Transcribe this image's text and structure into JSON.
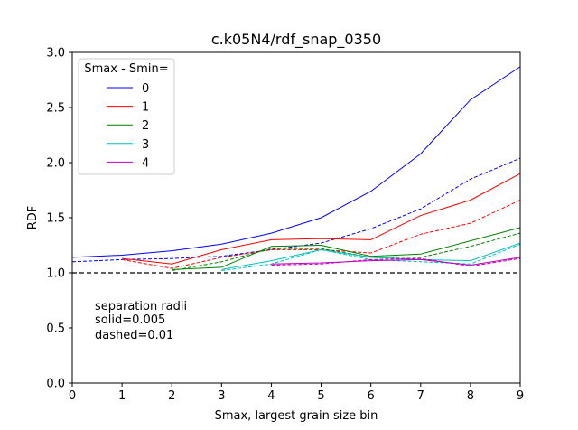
{
  "chart_data": {
    "type": "line",
    "title": "c.k05N4/rdf_snap_0350",
    "xlabel": "Smax, largest grain size bin",
    "ylabel": "RDF",
    "xlim": [
      0,
      9
    ],
    "ylim": [
      0.0,
      3.0
    ],
    "xticks": [
      "0",
      "1",
      "2",
      "3",
      "4",
      "5",
      "6",
      "7",
      "8",
      "9"
    ],
    "yticks": [
      "0.0",
      "0.5",
      "1.0",
      "1.5",
      "2.0",
      "2.5",
      "3.0"
    ],
    "grid": false,
    "legend": {
      "title": "Smax - Smin=",
      "placement": "upper-left",
      "entries": [
        {
          "label": "0",
          "color": "#0000ff"
        },
        {
          "label": "1",
          "color": "#ff0000"
        },
        {
          "label": "2",
          "color": "#008000"
        },
        {
          "label": "3",
          "color": "#00bfbf"
        },
        {
          "label": "4",
          "color": "#bf00bf"
        }
      ]
    },
    "reference_line": {
      "y": 1.0,
      "color": "#000000",
      "style": "dashed"
    },
    "annotation": [
      "separation radii",
      "solid=0.005",
      "dashed=0.01"
    ],
    "series": [
      {
        "name": "0",
        "style": "solid",
        "color": "#0000ff",
        "x": [
          0,
          1,
          2,
          3,
          4,
          5,
          6,
          7,
          8,
          9
        ],
        "y": [
          1.14,
          1.16,
          1.2,
          1.26,
          1.36,
          1.5,
          1.74,
          2.08,
          2.57,
          2.87
        ]
      },
      {
        "name": "0",
        "style": "dashed",
        "color": "#0000ff",
        "x": [
          0,
          1,
          2,
          3,
          4,
          5,
          6,
          7,
          8,
          9
        ],
        "y": [
          1.1,
          1.12,
          1.13,
          1.15,
          1.21,
          1.27,
          1.4,
          1.58,
          1.85,
          2.04
        ]
      },
      {
        "name": "1",
        "style": "solid",
        "color": "#ff0000",
        "x": [
          1,
          2,
          3,
          4,
          5,
          6,
          7,
          8,
          9
        ],
        "y": [
          1.13,
          1.08,
          1.21,
          1.3,
          1.31,
          1.3,
          1.52,
          1.66,
          1.9
        ]
      },
      {
        "name": "1",
        "style": "dashed",
        "color": "#ff0000",
        "x": [
          1,
          2,
          3,
          4,
          5,
          6,
          7,
          8,
          9
        ],
        "y": [
          1.12,
          1.04,
          1.14,
          1.21,
          1.21,
          1.18,
          1.35,
          1.45,
          1.66
        ]
      },
      {
        "name": "2",
        "style": "solid",
        "color": "#008000",
        "x": [
          2,
          3,
          4,
          5,
          6,
          7,
          8,
          9
        ],
        "y": [
          1.03,
          1.05,
          1.24,
          1.25,
          1.15,
          1.17,
          1.29,
          1.41
        ]
      },
      {
        "name": "2",
        "style": "dashed",
        "color": "#008000",
        "x": [
          2,
          3,
          4,
          5,
          6,
          7,
          8,
          9
        ],
        "y": [
          1.02,
          1.1,
          1.22,
          1.22,
          1.14,
          1.14,
          1.24,
          1.36
        ]
      },
      {
        "name": "3",
        "style": "solid",
        "color": "#00bfbf",
        "x": [
          3,
          4,
          5,
          6,
          7,
          8,
          9
        ],
        "y": [
          1.03,
          1.11,
          1.21,
          1.14,
          1.12,
          1.11,
          1.27
        ]
      },
      {
        "name": "3",
        "style": "dashed",
        "color": "#00bfbf",
        "x": [
          3,
          4,
          5,
          6,
          7,
          8,
          9
        ],
        "y": [
          1.02,
          1.08,
          1.21,
          1.12,
          1.1,
          1.08,
          1.26
        ]
      },
      {
        "name": "4",
        "style": "solid",
        "color": "#bf00bf",
        "x": [
          4,
          5,
          6,
          7,
          8,
          9
        ],
        "y": [
          1.08,
          1.09,
          1.11,
          1.12,
          1.07,
          1.14
        ]
      },
      {
        "name": "4",
        "style": "dashed",
        "color": "#bf00bf",
        "x": [
          4,
          5,
          6,
          7,
          8,
          9
        ],
        "y": [
          1.07,
          1.08,
          1.12,
          1.13,
          1.06,
          1.13
        ]
      }
    ]
  }
}
